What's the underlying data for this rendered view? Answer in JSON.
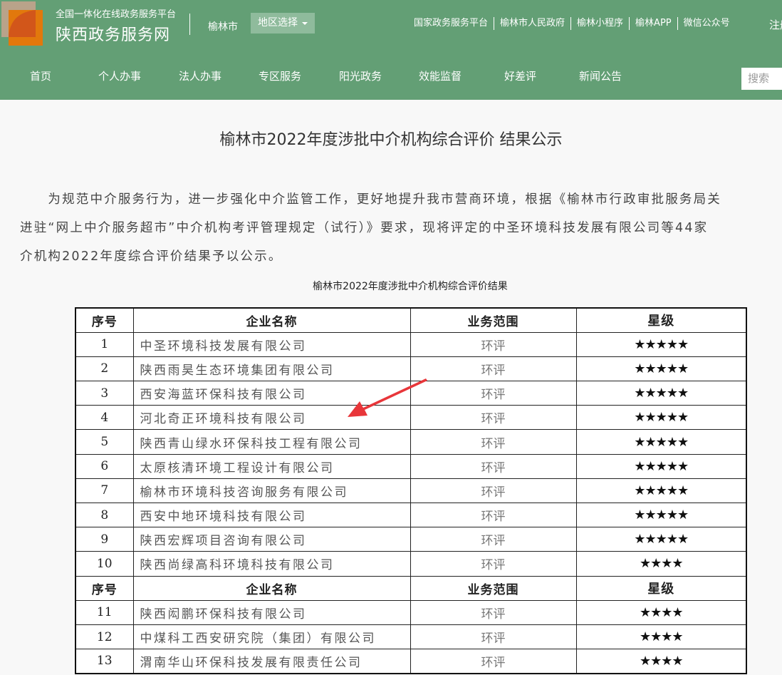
{
  "header": {
    "subtitle": "全国一体化在线政务服务平台",
    "site_name": "陕西政务服务网",
    "city": "榆林市",
    "region_select": "地区选择",
    "top_links": [
      "国家政务服务平台",
      "榆林市人民政府",
      "榆林小程序",
      "榆林APP",
      "微信公众号"
    ],
    "register": "注册",
    "nav": [
      "首页",
      "个人办事",
      "法人办事",
      "专区服务",
      "阳光政务",
      "效能监督",
      "好差评",
      "新闻公告"
    ],
    "search_placeholder": "搜索"
  },
  "article": {
    "title": "榆林市2022年度涉批中介机构综合评价 结果公示",
    "paragraph_lines": [
      "　　为规范中介服务行为，进一步强化中介监管工作，更好地提升我市营商环境，根据《榆林市行政审批服务局关",
      "进驻“网上中介服务超市”中介机构考评管理规定（试行）》要求，现将评定的中圣环境科技发展有限公司等44家",
      "介机构2022年度综合评价结果予以公示。"
    ],
    "table_caption": "榆林市2022年度涉批中介机构综合评价结果"
  },
  "table": {
    "headers": [
      "序号",
      "企业名称",
      "业务范围",
      "星级"
    ],
    "rows": [
      [
        "1",
        "中圣环境科技发展有限公司",
        "环评",
        "★★★★★"
      ],
      [
        "2",
        "陕西雨昊生态环境集团有限公司",
        "环评",
        "★★★★★"
      ],
      [
        "3",
        "西安海蓝环保科技有限公司",
        "环评",
        "★★★★★"
      ],
      [
        "4",
        "河北奇正环境科技有限公司",
        "环评",
        "★★★★★"
      ],
      [
        "5",
        "陕西青山绿水环保科技工程有限公司",
        "环评",
        "★★★★★"
      ],
      [
        "6",
        "太原核清环境工程设计有限公司",
        "环评",
        "★★★★★"
      ],
      [
        "7",
        "榆林市环境科技咨询服务有限公司",
        "环评",
        "★★★★★"
      ],
      [
        "8",
        "西安中地环境科技有限公司",
        "环评",
        "★★★★★"
      ],
      [
        "9",
        "陕西宏辉项目咨询有限公司",
        "环评",
        "★★★★★"
      ],
      [
        "10",
        "陕西尚绿高科环境科技有限公司",
        "环评",
        "★★★★"
      ],
      "header",
      [
        "11",
        "陕西闳鹏环保科技有限公司",
        "环评",
        "★★★★"
      ],
      [
        "12",
        "中煤科工西安研究院（集团）有限公司",
        "环评",
        "★★★★"
      ],
      [
        "13",
        "渭南华山环保科技发展有限责任公司",
        "环评",
        "★★★★"
      ]
    ]
  },
  "colors": {
    "header_bg": "#639f75",
    "arrow": "#e8363a"
  }
}
